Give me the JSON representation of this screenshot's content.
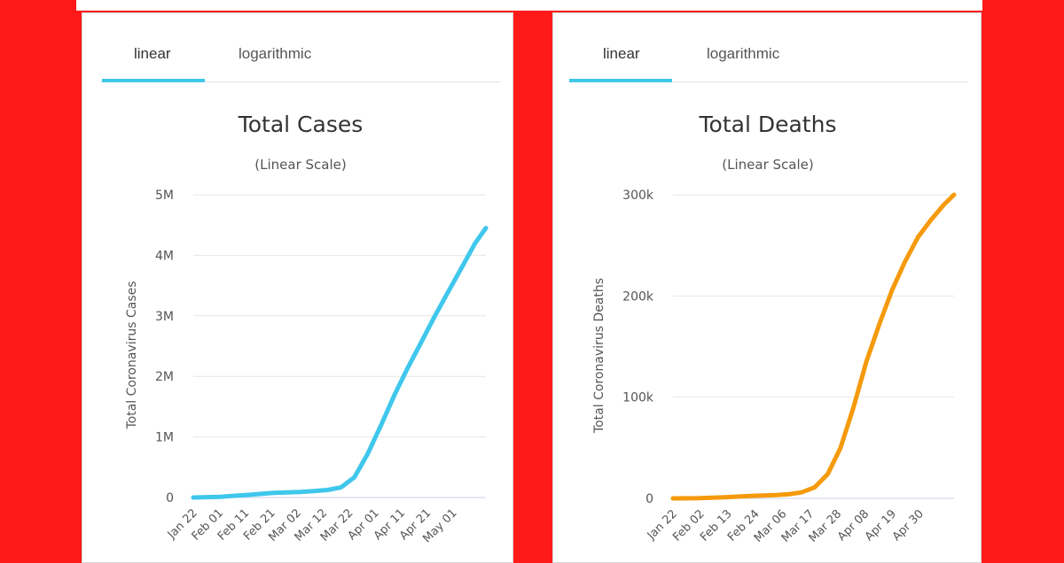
{
  "colors": {
    "cases": "#3fc7ec",
    "deaths": "#f59a0c",
    "background": "#ff1a1a"
  },
  "tabs": {
    "linear": "linear",
    "logarithmic": "logarithmic",
    "selected": "linear"
  },
  "chart_data": [
    {
      "type": "line",
      "title": "Total Cases",
      "subtitle": "(Linear Scale)",
      "ylabel": "Total Coronavirus Cases",
      "ylim": [
        0,
        5000000
      ],
      "yticks": [
        0,
        1000000,
        2000000,
        3000000,
        4000000,
        5000000
      ],
      "ytick_labels": [
        "0",
        "1M",
        "2M",
        "3M",
        "4M",
        "5M"
      ],
      "xtick_labels": [
        "Jan 22",
        "Feb 01",
        "Feb 11",
        "Feb 21",
        "Mar 02",
        "Mar 12",
        "Mar 22",
        "Apr 01",
        "Apr 11",
        "Apr 21",
        "May 01"
      ],
      "x": [
        0,
        10,
        20,
        30,
        40,
        45,
        50,
        55,
        60,
        65,
        70,
        75,
        80,
        85,
        90,
        95,
        100,
        105,
        109
      ],
      "series": [
        {
          "name": "Total Cases",
          "values": [
            550,
            11950,
            43100,
            76000,
            90300,
            105000,
            125000,
            167000,
            335000,
            723000,
            1200000,
            1700000,
            2150000,
            2570000,
            3000000,
            3400000,
            3800000,
            4200000,
            4450000
          ]
        }
      ]
    },
    {
      "type": "line",
      "title": "Total Deaths",
      "subtitle": "(Linear Scale)",
      "ylabel": "Total Coronavirus Deaths",
      "ylim": [
        0,
        300000
      ],
      "yticks": [
        0,
        100000,
        200000,
        300000
      ],
      "ytick_labels": [
        "0",
        "100k",
        "200k",
        "300k"
      ],
      "xtick_labels": [
        "Jan 22",
        "Feb 02",
        "Feb 13",
        "Feb 24",
        "Mar 06",
        "Mar 17",
        "Mar 28",
        "Apr 08",
        "Apr 19",
        "Apr 30"
      ],
      "x": [
        0,
        10,
        20,
        30,
        40,
        45,
        50,
        55,
        60,
        65,
        70,
        75,
        80,
        85,
        90,
        95,
        100,
        105,
        109
      ],
      "series": [
        {
          "name": "Total Deaths",
          "values": [
            17,
            300,
            1100,
            2400,
            3300,
            4100,
            6000,
            11000,
            24000,
            50000,
            90000,
            135000,
            172000,
            206000,
            234000,
            258000,
            275000,
            290000,
            300000
          ]
        }
      ]
    }
  ]
}
